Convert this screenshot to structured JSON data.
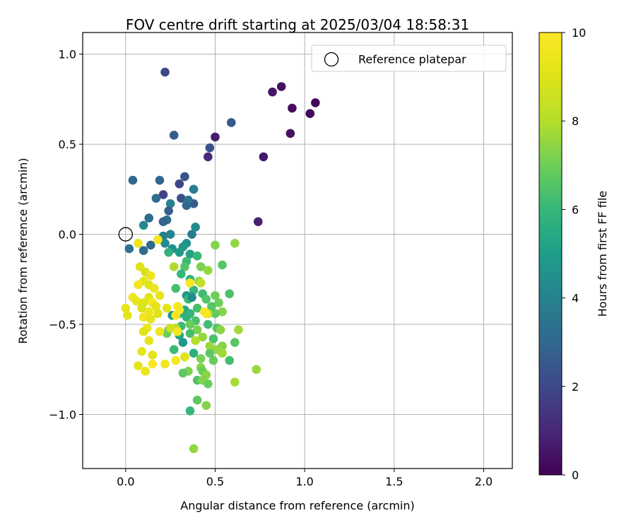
{
  "chart_data": {
    "type": "scatter",
    "title": "FOV centre drift starting at 2025/03/04 18:58:31",
    "xlabel": "Angular distance from reference (arcmin)",
    "ylabel": "Rotation from reference (arcmin)",
    "xlim": [
      -0.24,
      2.16
    ],
    "ylim": [
      -1.3,
      1.12
    ],
    "xticks": [
      0.0,
      0.5,
      1.0,
      1.5,
      2.0
    ],
    "xtick_labels": [
      "0.0",
      "0.5",
      "1.0",
      "1.5",
      "2.0"
    ],
    "yticks": [
      1.0,
      0.5,
      0.0,
      -0.5,
      -1.0
    ],
    "ytick_labels": [
      "1.0",
      "0.5",
      "0.0",
      "−0.5",
      "−1.0"
    ],
    "grid": true,
    "legend": {
      "position": "top-right",
      "entries": [
        "Reference platepar"
      ]
    },
    "reference_point": {
      "x": 0.0,
      "y": 0.0,
      "marker": "open-circle"
    },
    "colorbar": {
      "label": "Hours from first FF file",
      "colormap": "viridis",
      "range": [
        0,
        10
      ],
      "ticks": [
        0,
        2,
        4,
        6,
        8,
        10
      ],
      "tick_labels": [
        "0",
        "2",
        "4",
        "6",
        "8",
        "10"
      ]
    },
    "points": [
      [
        1.06,
        0.73,
        0.1
      ],
      [
        1.03,
        0.67,
        0.2
      ],
      [
        0.93,
        0.7,
        0.3
      ],
      [
        0.87,
        0.82,
        0.4
      ],
      [
        0.82,
        0.79,
        0.5
      ],
      [
        0.92,
        0.56,
        0.4
      ],
      [
        0.77,
        0.43,
        0.6
      ],
      [
        0.74,
        0.07,
        0.8
      ],
      [
        0.5,
        0.54,
        0.7
      ],
      [
        0.46,
        0.43,
        1.1
      ],
      [
        0.59,
        0.62,
        2.5
      ],
      [
        0.47,
        0.48,
        2.2
      ],
      [
        0.22,
        0.9,
        2.0
      ],
      [
        0.27,
        0.55,
        2.6
      ],
      [
        0.33,
        0.32,
        2.4
      ],
      [
        0.3,
        0.28,
        1.9
      ],
      [
        0.19,
        0.3,
        3.0
      ],
      [
        0.21,
        0.22,
        1.8
      ],
      [
        0.17,
        0.2,
        3.2
      ],
      [
        0.04,
        0.3,
        3.0
      ],
      [
        0.31,
        0.2,
        2.2
      ],
      [
        0.38,
        0.25,
        3.8
      ],
      [
        0.38,
        0.17,
        2.6
      ],
      [
        0.35,
        0.19,
        3.5
      ],
      [
        0.34,
        0.16,
        3.0
      ],
      [
        0.25,
        0.17,
        4.0
      ],
      [
        0.24,
        0.13,
        2.7
      ],
      [
        0.23,
        0.08,
        3.3
      ],
      [
        0.21,
        0.07,
        2.8
      ],
      [
        0.13,
        0.09,
        3.2
      ],
      [
        0.39,
        0.04,
        4.4
      ],
      [
        0.1,
        0.05,
        4.2
      ],
      [
        0.21,
        -0.01,
        3.9
      ],
      [
        0.25,
        0.0,
        4.1
      ],
      [
        0.37,
        0.0,
        3.8
      ],
      [
        0.14,
        -0.06,
        3.0
      ],
      [
        0.02,
        -0.08,
        3.4
      ],
      [
        0.1,
        -0.09,
        3.1
      ],
      [
        0.22,
        -0.05,
        4.3
      ],
      [
        0.26,
        -0.08,
        4.5
      ],
      [
        0.34,
        -0.05,
        4.5
      ],
      [
        0.32,
        -0.07,
        4.7
      ],
      [
        0.24,
        -0.1,
        5.8
      ],
      [
        0.3,
        -0.1,
        4.9
      ],
      [
        0.36,
        -0.11,
        5.2
      ],
      [
        0.4,
        -0.12,
        6.0
      ],
      [
        0.34,
        -0.15,
        6.1
      ],
      [
        0.5,
        -0.06,
        7.3
      ],
      [
        0.61,
        -0.05,
        7.5
      ],
      [
        0.54,
        -0.17,
        6.6
      ],
      [
        0.42,
        -0.18,
        7.2
      ],
      [
        0.46,
        -0.2,
        7.5
      ],
      [
        0.33,
        -0.18,
        6.5
      ],
      [
        0.31,
        -0.22,
        6.0
      ],
      [
        0.36,
        -0.25,
        5.8
      ],
      [
        0.41,
        -0.26,
        7.6
      ],
      [
        0.42,
        -0.27,
        8.3
      ],
      [
        0.28,
        -0.3,
        6.3
      ],
      [
        0.38,
        -0.31,
        5.9
      ],
      [
        0.34,
        -0.34,
        4.8
      ],
      [
        0.43,
        -0.33,
        6.2
      ],
      [
        0.5,
        -0.34,
        7.0
      ],
      [
        0.58,
        -0.33,
        6.4
      ],
      [
        0.35,
        -0.36,
        6.1
      ],
      [
        0.37,
        -0.35,
        4.4
      ],
      [
        0.45,
        -0.36,
        6.5
      ],
      [
        0.52,
        -0.38,
        7.0
      ],
      [
        0.48,
        -0.4,
        6.6
      ],
      [
        0.4,
        -0.41,
        6.3
      ],
      [
        0.33,
        -0.42,
        5.4
      ],
      [
        0.54,
        -0.43,
        7.3
      ],
      [
        0.5,
        -0.44,
        6.8
      ],
      [
        0.46,
        -0.44,
        8.1
      ],
      [
        0.36,
        -0.44,
        6.0
      ],
      [
        0.3,
        -0.44,
        5.6
      ],
      [
        0.26,
        -0.45,
        4.8
      ],
      [
        0.34,
        -0.46,
        5.8
      ],
      [
        0.39,
        -0.48,
        6.4
      ],
      [
        0.46,
        -0.5,
        6.2
      ],
      [
        0.51,
        -0.52,
        6.6
      ],
      [
        0.36,
        -0.5,
        6.9
      ],
      [
        0.31,
        -0.51,
        6.1
      ],
      [
        0.28,
        -0.52,
        8.0
      ],
      [
        0.24,
        -0.53,
        6.8
      ],
      [
        0.4,
        -0.53,
        7.2
      ],
      [
        0.53,
        -0.53,
        7.4
      ],
      [
        0.63,
        -0.53,
        7.7
      ],
      [
        0.23,
        -0.55,
        7.0
      ],
      [
        0.3,
        -0.56,
        5.3
      ],
      [
        0.36,
        -0.55,
        6.3
      ],
      [
        0.43,
        -0.57,
        7.5
      ],
      [
        0.49,
        -0.58,
        6.4
      ],
      [
        0.61,
        -0.6,
        6.6
      ],
      [
        0.39,
        -0.59,
        8.0
      ],
      [
        0.32,
        -0.6,
        4.7
      ],
      [
        0.47,
        -0.62,
        7.6
      ],
      [
        0.54,
        -0.62,
        7.3
      ],
      [
        0.51,
        -0.64,
        7.5
      ],
      [
        0.27,
        -0.64,
        6.1
      ],
      [
        0.38,
        -0.66,
        5.7
      ],
      [
        0.47,
        -0.66,
        6.7
      ],
      [
        0.54,
        -0.66,
        7.7
      ],
      [
        0.33,
        -0.68,
        6.8
      ],
      [
        0.42,
        -0.69,
        7.1
      ],
      [
        0.58,
        -0.7,
        6.3
      ],
      [
        0.49,
        -0.7,
        6.9
      ],
      [
        0.42,
        -0.74,
        7.3
      ],
      [
        0.73,
        -0.75,
        7.6
      ],
      [
        0.43,
        -0.76,
        6.9
      ],
      [
        0.35,
        -0.76,
        7.2
      ],
      [
        0.32,
        -0.77,
        6.7
      ],
      [
        0.45,
        -0.78,
        7.4
      ],
      [
        0.4,
        -0.81,
        6.5
      ],
      [
        0.43,
        -0.81,
        7.3
      ],
      [
        0.46,
        -0.83,
        6.9
      ],
      [
        0.61,
        -0.82,
        7.8
      ],
      [
        0.4,
        -0.92,
        6.7
      ],
      [
        0.45,
        -0.95,
        7.3
      ],
      [
        0.36,
        -0.98,
        6.0
      ],
      [
        0.38,
        -1.19,
        7.5
      ],
      [
        0.07,
        -0.05,
        9.5
      ],
      [
        0.18,
        -0.03,
        9.7
      ],
      [
        0.08,
        -0.18,
        9.0
      ],
      [
        0.11,
        -0.21,
        8.8
      ],
      [
        0.14,
        -0.23,
        9.5
      ],
      [
        0.1,
        -0.26,
        9.2
      ],
      [
        0.13,
        -0.28,
        9.0
      ],
      [
        0.07,
        -0.28,
        9.7
      ],
      [
        0.16,
        -0.3,
        9.4
      ],
      [
        0.13,
        -0.35,
        9.1
      ],
      [
        0.19,
        -0.34,
        9.3
      ],
      [
        0.04,
        -0.35,
        9.6
      ],
      [
        0.06,
        -0.37,
        9.3
      ],
      [
        0.1,
        -0.38,
        9.0
      ],
      [
        0.15,
        -0.38,
        9.7
      ],
      [
        0.17,
        -0.4,
        9.2
      ],
      [
        0.0,
        -0.41,
        9.3
      ],
      [
        0.09,
        -0.41,
        8.9
      ],
      [
        0.13,
        -0.43,
        9.4
      ],
      [
        0.23,
        -0.41,
        9.1
      ],
      [
        0.29,
        -0.4,
        9.8
      ],
      [
        0.18,
        -0.44,
        9.0
      ],
      [
        0.01,
        -0.45,
        9.2
      ],
      [
        0.1,
        -0.46,
        9.6
      ],
      [
        0.14,
        -0.47,
        9.2
      ],
      [
        0.3,
        -0.42,
        9.9
      ],
      [
        0.28,
        -0.45,
        9.8
      ],
      [
        0.36,
        -0.27,
        9.9
      ],
      [
        0.45,
        -0.44,
        9.9
      ],
      [
        0.12,
        -0.52,
        9.4
      ],
      [
        0.1,
        -0.54,
        9.1
      ],
      [
        0.19,
        -0.54,
        9.6
      ],
      [
        0.29,
        -0.54,
        9.7
      ],
      [
        0.13,
        -0.59,
        9.2
      ],
      [
        0.09,
        -0.65,
        9.3
      ],
      [
        0.15,
        -0.67,
        9.1
      ],
      [
        0.22,
        -0.72,
        9.6
      ],
      [
        0.28,
        -0.7,
        9.8
      ],
      [
        0.15,
        -0.72,
        9.9
      ],
      [
        0.07,
        -0.73,
        9.2
      ],
      [
        0.11,
        -0.76,
        9.4
      ],
      [
        0.33,
        -0.68,
        9.1
      ],
      [
        0.44,
        -0.43,
        9.9
      ],
      [
        0.25,
        -0.52,
        8.6
      ],
      [
        0.27,
        -0.18,
        7.9
      ]
    ]
  }
}
